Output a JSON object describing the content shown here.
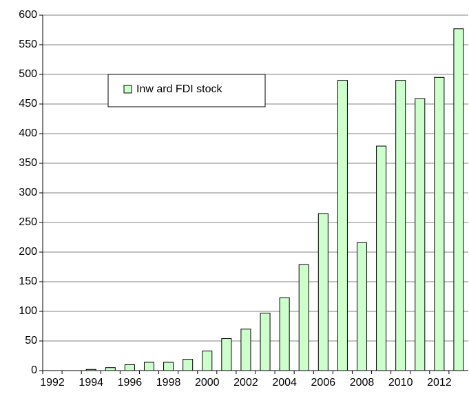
{
  "chart_data": {
    "type": "bar",
    "categories": [
      "1992",
      null,
      "1994",
      null,
      "1996",
      null,
      "1998",
      null,
      "2000",
      null,
      "2002",
      null,
      "2004",
      null,
      "2006",
      null,
      "2008",
      null,
      "2010",
      null,
      "2012",
      null
    ],
    "series": [
      {
        "name": "Inw ard FDI stock",
        "color": "#ccffcc",
        "values": [
          0,
          0,
          2,
          5,
          10,
          14,
          14,
          19,
          33,
          54,
          70,
          97,
          123,
          179,
          265,
          490,
          216,
          379,
          490,
          459,
          495,
          577
        ]
      }
    ],
    "ylim": [
      0,
      600
    ],
    "yticks": [
      0,
      50,
      100,
      150,
      200,
      250,
      300,
      350,
      400,
      450,
      500,
      550,
      600
    ],
    "grid": true,
    "legend": "upper left"
  }
}
